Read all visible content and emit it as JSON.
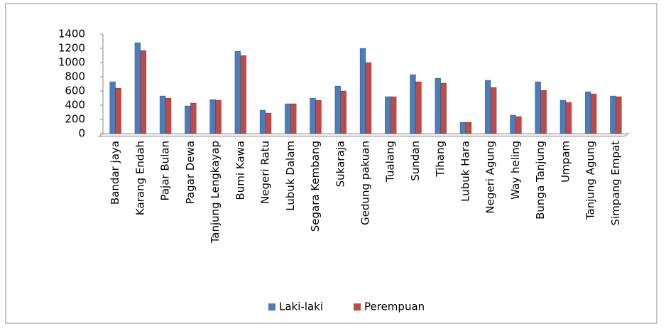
{
  "chart_data": {
    "type": "bar",
    "categories": [
      "Bandar jaya",
      "Karang Endah",
      "Pajar Bulan",
      "Pagar Dewa",
      "Tanjung Lengkayap",
      "Bumi Kawa",
      "Negeri Ratu",
      "Lubuk Dalam",
      "Segara Kembang",
      "Sukaraja",
      "Gedung pakuan",
      "Tualang",
      "Sundan",
      "Tihang",
      "Lubuk Hara",
      "Negeri Agung",
      "Way heling",
      "Bunga Tanjung",
      "Umpam",
      "Tanjung Agung",
      "Simpang Empat"
    ],
    "series": [
      {
        "name": "Laki-laki",
        "color": "#4a7ebb",
        "values": [
          730,
          1280,
          530,
          390,
          480,
          1160,
          330,
          420,
          500,
          670,
          1200,
          520,
          830,
          780,
          160,
          750,
          260,
          730,
          470,
          590,
          530
        ]
      },
      {
        "name": "Perempuan",
        "color": "#be4b48",
        "values": [
          640,
          1170,
          500,
          430,
          470,
          1100,
          290,
          420,
          470,
          600,
          1000,
          520,
          730,
          710,
          160,
          650,
          240,
          610,
          440,
          560,
          520
        ]
      }
    ],
    "ylim": [
      0,
      1400
    ],
    "yticks": [
      0,
      200,
      400,
      600,
      800,
      1000,
      1200,
      1400
    ],
    "grid": false,
    "legend": "bottom"
  }
}
